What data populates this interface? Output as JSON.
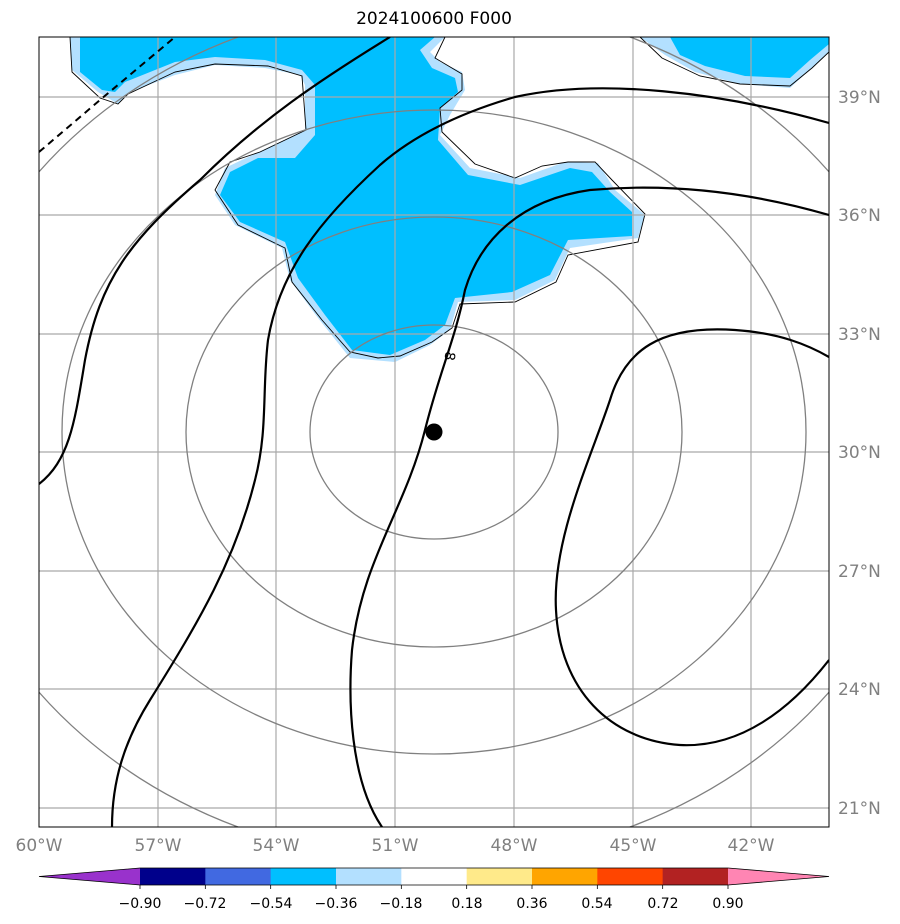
{
  "title": "2024100600 F000",
  "map": {
    "lat_labels": [
      "39°N",
      "36°N",
      "33°N",
      "30°N",
      "27°N",
      "24°N",
      "21°N"
    ],
    "lon_labels": [
      "60°W",
      "57°W",
      "54°W",
      "51°W",
      "48°W",
      "45°W",
      "42°W"
    ],
    "contour_label": "8",
    "colors": {
      "frame": "#000000",
      "gridlines": "#a9a9a9",
      "range_rings": "#808080",
      "shade_dark": "#00bfff",
      "shade_light": "#b3e0ff",
      "storm_center": "#000000"
    }
  },
  "colorbar": {
    "ticks": [
      "−0.90",
      "−0.72",
      "−0.54",
      "−0.36",
      "−0.18",
      "0.18",
      "0.36",
      "0.54",
      "0.72",
      "0.90"
    ],
    "colors": [
      "#9932cc",
      "#00008b",
      "#4169e1",
      "#00bfff",
      "#b3e0ff",
      "#ffffff",
      "#ffea8a",
      "#ffa500",
      "#ff4500",
      "#b22222",
      "#ff85b3"
    ]
  }
}
